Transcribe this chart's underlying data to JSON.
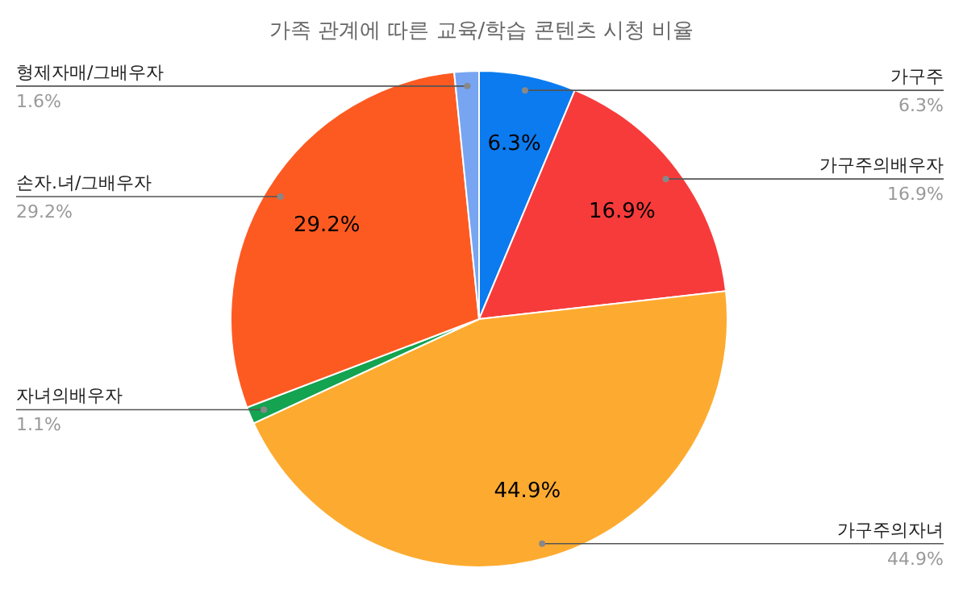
{
  "chart_data": {
    "type": "pie",
    "title": "가족 관계에 따른 교육/학습 콘텐츠 시청 비율",
    "categories": [
      "가구주",
      "가구주의배우자",
      "가구주의자녀",
      "자녀의배우자",
      "손자.녀/그배우자",
      "형제자매/그배우자"
    ],
    "values": [
      6.3,
      16.9,
      44.9,
      1.1,
      29.2,
      1.6
    ],
    "value_labels": [
      "6.3%",
      "16.9%",
      "44.9%",
      "1.1%",
      "29.2%",
      "1.6%"
    ],
    "colors": [
      "#0b7bef",
      "#f73b3b",
      "#fdab30",
      "#13a351",
      "#fd5a22",
      "#77a5f2"
    ]
  }
}
